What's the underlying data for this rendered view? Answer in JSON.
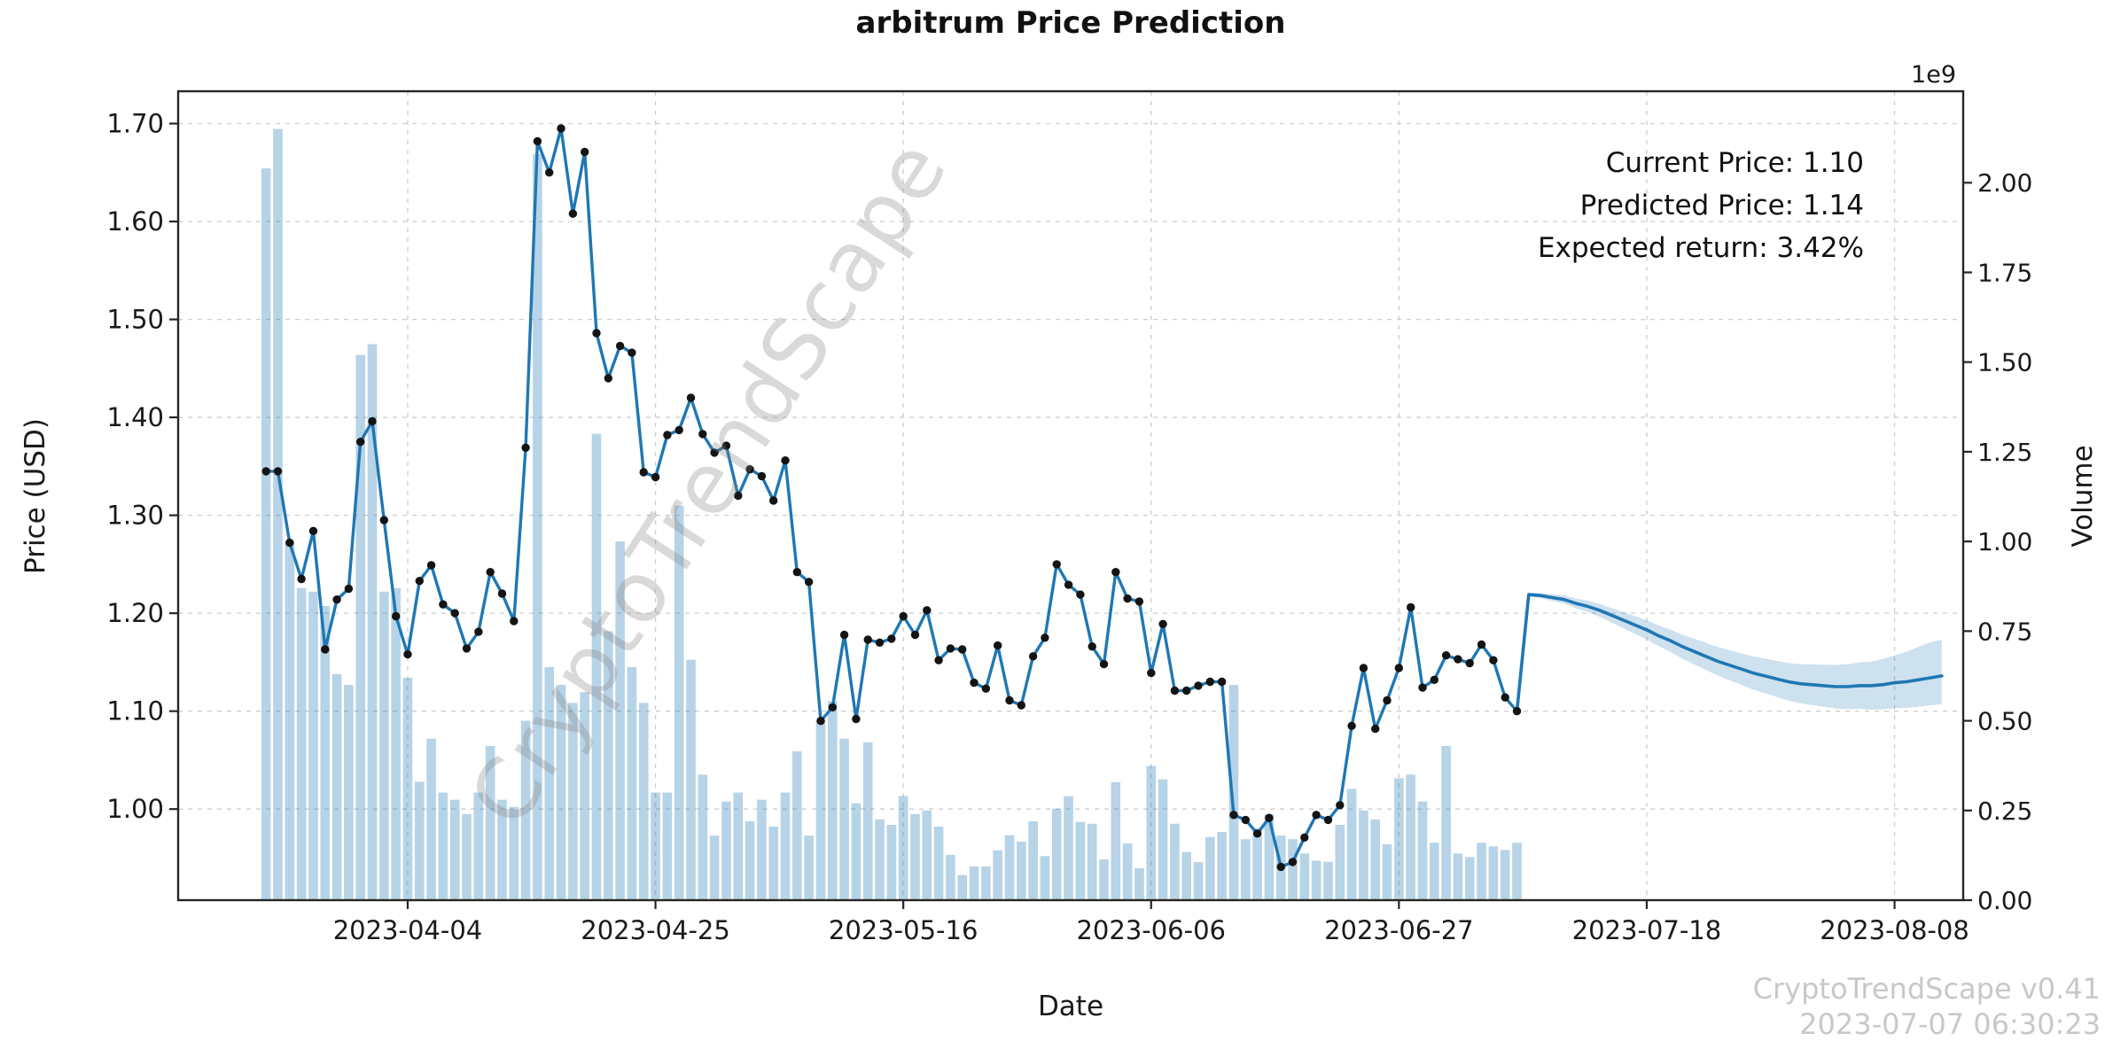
{
  "title": "arbitrum Price Prediction",
  "watermark": "CryptoTrendScape",
  "annotation": {
    "current_price": "Current Price: 1.10",
    "predicted_price": "Predicted Price: 1.14",
    "expected_return": "Expected return: 3.42%"
  },
  "footer": {
    "line1": "CryptoTrendScape v0.41",
    "line2": "2023-07-07 06:30:23"
  },
  "chart_data": {
    "type": "line",
    "subtype": "price-line with volume bars and forecast confidence band",
    "title": "arbitrum Price Prediction",
    "xlabel": "Date",
    "ylabel_left": "Price (USD)",
    "ylabel_right": "Volume",
    "volume_multiplier_label": "1e9",
    "grid": true,
    "x_tick_labels": [
      "2023-04-04",
      "2023-04-25",
      "2023-05-16",
      "2023-06-06",
      "2023-06-27",
      "2023-07-18",
      "2023-08-08"
    ],
    "x_tick_days": [
      12,
      33,
      54,
      75,
      96,
      117,
      138
    ],
    "y_ticks_left_values": [
      1.0,
      1.1,
      1.2,
      1.3,
      1.4,
      1.5,
      1.6,
      1.7
    ],
    "y_ticks_left_labels": [
      "1.00",
      "1.10",
      "1.20",
      "1.30",
      "1.40",
      "1.50",
      "1.60",
      "1.70"
    ],
    "y_ticks_right_values_e9": [
      0.0,
      0.25,
      0.5,
      0.75,
      1.0,
      1.25,
      1.5,
      1.75,
      2.0
    ],
    "y_ticks_right_labels": [
      "0.00",
      "0.25",
      "0.50",
      "0.75",
      "1.00",
      "1.25",
      "1.50",
      "1.75",
      "2.00"
    ],
    "ylim_left": [
      0.907,
      1.733
    ],
    "ylim_right_e9": [
      0,
      2.255
    ],
    "actual": {
      "start_date": "2023-03-23",
      "end_date": "2023-07-07",
      "prices": [
        1.345,
        1.345,
        1.272,
        1.235,
        1.284,
        1.163,
        1.214,
        1.225,
        1.375,
        1.396,
        1.295,
        1.197,
        1.158,
        1.233,
        1.249,
        1.209,
        1.2,
        1.164,
        1.181,
        1.242,
        1.22,
        1.192,
        1.369,
        1.682,
        1.65,
        1.695,
        1.608,
        1.671,
        1.486,
        1.44,
        1.473,
        1.466,
        1.344,
        1.339,
        1.382,
        1.387,
        1.42,
        1.383,
        1.364,
        1.371,
        1.32,
        1.347,
        1.34,
        1.315,
        1.356,
        1.242,
        1.232,
        1.09,
        1.104,
        1.178,
        1.092,
        1.173,
        1.17,
        1.174,
        1.197,
        1.178,
        1.203,
        1.152,
        1.164,
        1.163,
        1.129,
        1.123,
        1.167,
        1.111,
        1.106,
        1.156,
        1.175,
        1.25,
        1.229,
        1.219,
        1.166,
        1.148,
        1.242,
        1.215,
        1.212,
        1.139,
        1.189,
        1.121,
        1.121,
        1.126,
        1.13,
        1.13,
        0.994,
        0.989,
        0.975,
        0.991,
        0.941,
        0.946,
        0.971,
        0.994,
        0.989,
        1.004,
        1.085,
        1.144,
        1.082,
        1.111,
        1.144,
        1.206,
        1.124,
        1.132,
        1.157,
        1.153,
        1.149,
        1.168,
        1.152,
        1.114,
        1.1
      ],
      "volumes_e9": [
        2.04,
        2.15,
        1.0,
        0.87,
        0.86,
        0.82,
        0.63,
        0.6,
        1.52,
        1.55,
        0.86,
        0.87,
        0.62,
        0.33,
        0.45,
        0.3,
        0.28,
        0.24,
        0.3,
        0.43,
        0.28,
        0.26,
        0.5,
        2.08,
        0.65,
        0.6,
        0.55,
        0.58,
        1.3,
        0.75,
        1.0,
        0.65,
        0.55,
        0.3,
        0.3,
        1.1,
        0.67,
        0.35,
        0.18,
        0.275,
        0.3,
        0.22,
        0.28,
        0.205,
        0.3,
        0.415,
        0.18,
        0.5,
        0.555,
        0.45,
        0.27,
        0.44,
        0.225,
        0.21,
        0.29,
        0.24,
        0.25,
        0.205,
        0.126,
        0.07,
        0.094,
        0.094,
        0.139,
        0.181,
        0.163,
        0.22,
        0.123,
        0.255,
        0.29,
        0.218,
        0.213,
        0.114,
        0.329,
        0.158,
        0.089,
        0.374,
        0.337,
        0.213,
        0.134,
        0.106,
        0.176,
        0.19,
        0.6,
        0.17,
        0.2,
        0.24,
        0.18,
        0.17,
        0.13,
        0.11,
        0.107,
        0.21,
        0.31,
        0.25,
        0.225,
        0.156,
        0.34,
        0.35,
        0.275,
        0.16,
        0.43,
        0.13,
        0.12,
        0.16,
        0.15,
        0.14,
        0.16
      ]
    },
    "forecast": {
      "start_date": "2023-07-08",
      "mean": [
        1.219,
        1.218,
        1.216,
        1.214,
        1.21,
        1.207,
        1.203,
        1.198,
        1.193,
        1.188,
        1.183,
        1.177,
        1.172,
        1.166,
        1.161,
        1.156,
        1.151,
        1.147,
        1.143,
        1.139,
        1.136,
        1.133,
        1.13,
        1.128,
        1.127,
        1.126,
        1.125,
        1.125,
        1.126,
        1.126,
        1.127,
        1.129,
        1.13,
        1.132,
        1.134,
        1.136
      ],
      "upper": [
        1.221,
        1.2206,
        1.2194,
        1.2182,
        1.215,
        1.2128,
        1.2096,
        1.2054,
        1.2012,
        1.197,
        1.1928,
        1.1876,
        1.1834,
        1.1782,
        1.174,
        1.1698,
        1.1656,
        1.1624,
        1.1591,
        1.1559,
        1.1537,
        1.1514,
        1.1492,
        1.148,
        1.1477,
        1.1475,
        1.1472,
        1.148,
        1.1497,
        1.1505,
        1.1532,
        1.157,
        1.1607,
        1.1655,
        1.1702,
        1.173
      ],
      "lower": [
        1.217,
        1.2154,
        1.2126,
        1.2098,
        1.205,
        1.2012,
        1.1964,
        1.1906,
        1.1848,
        1.179,
        1.1732,
        1.1664,
        1.1606,
        1.1538,
        1.148,
        1.1422,
        1.1364,
        1.1316,
        1.1269,
        1.1221,
        1.1183,
        1.1146,
        1.1108,
        1.108,
        1.1063,
        1.1045,
        1.1028,
        1.102,
        1.1023,
        1.1015,
        1.1018,
        1.103,
        1.1033,
        1.1045,
        1.1058,
        1.107
      ]
    },
    "key_values": {
      "current_price": 1.1,
      "predicted_price": 1.14,
      "expected_return_pct": 3.42
    },
    "colors": {
      "line": "#1f77b4",
      "marker": "#141414",
      "bar_fill": "#1f77b4",
      "bar_opacity": 0.32,
      "band_fill": "#1f77b4",
      "band_opacity": 0.22,
      "grid": "#c9c9c9",
      "spine": "#262626",
      "tick_text": "#1a1a1a"
    }
  }
}
